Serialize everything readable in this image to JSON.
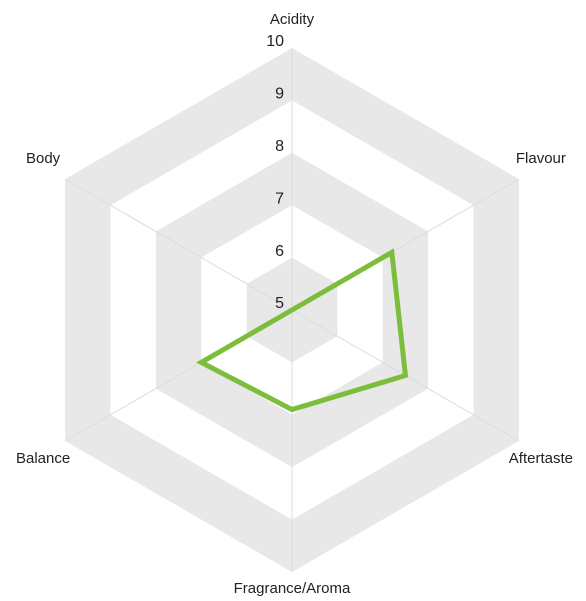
{
  "chart_data": {
    "type": "radar",
    "categories": [
      "Acidity",
      "Flavour",
      "Aftertaste",
      "Fragrance/Aroma",
      "Balance",
      "Body"
    ],
    "series": [
      {
        "color": "#7cbd3c",
        "values": [
          5,
          7.2,
          7.5,
          6.9,
          7.0,
          5
        ]
      }
    ],
    "ylim": [
      5,
      10
    ],
    "yticks": [
      5,
      6,
      7,
      8,
      9,
      10
    ]
  }
}
